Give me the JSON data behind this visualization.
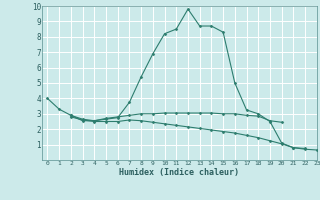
{
  "xlabel": "Humidex (Indice chaleur)",
  "bg_color": "#cceaea",
  "grid_color": "#ffffff",
  "line_color": "#2d7d6e",
  "xlim": [
    -0.5,
    23
  ],
  "ylim": [
    0,
    10
  ],
  "xticks": [
    0,
    1,
    2,
    3,
    4,
    5,
    6,
    7,
    8,
    9,
    10,
    11,
    12,
    13,
    14,
    15,
    16,
    17,
    18,
    19,
    20,
    21,
    22,
    23
  ],
  "yticks": [
    1,
    2,
    3,
    4,
    5,
    6,
    7,
    8,
    9,
    10
  ],
  "line1_x": [
    0,
    1,
    2,
    3,
    4,
    5,
    6,
    7,
    8,
    9,
    10,
    11,
    12,
    13,
    14,
    15,
    16,
    17,
    18,
    19,
    20,
    21,
    22
  ],
  "line1_y": [
    4.0,
    3.3,
    2.9,
    2.55,
    2.55,
    2.65,
    2.75,
    3.75,
    5.4,
    6.9,
    8.2,
    8.5,
    9.8,
    8.7,
    8.7,
    8.3,
    5.0,
    3.25,
    3.0,
    2.5,
    1.1,
    0.8,
    0.75
  ],
  "line2_x": [
    2,
    3,
    4,
    5,
    6,
    7,
    8,
    9,
    10,
    11,
    12,
    13,
    14,
    15,
    16,
    17,
    18,
    19,
    20
  ],
  "line2_y": [
    2.9,
    2.65,
    2.55,
    2.7,
    2.8,
    2.9,
    3.0,
    3.0,
    3.05,
    3.05,
    3.05,
    3.05,
    3.05,
    3.0,
    3.0,
    2.9,
    2.85,
    2.55,
    2.45
  ],
  "line3_x": [
    2,
    3,
    4,
    5,
    6,
    7,
    8,
    9,
    10,
    11,
    12,
    13,
    14,
    15,
    16,
    17,
    18,
    19,
    20,
    21,
    22,
    23
  ],
  "line3_y": [
    2.8,
    2.6,
    2.5,
    2.5,
    2.5,
    2.6,
    2.55,
    2.45,
    2.35,
    2.25,
    2.15,
    2.05,
    1.95,
    1.85,
    1.75,
    1.6,
    1.45,
    1.25,
    1.05,
    0.8,
    0.7,
    0.65
  ]
}
